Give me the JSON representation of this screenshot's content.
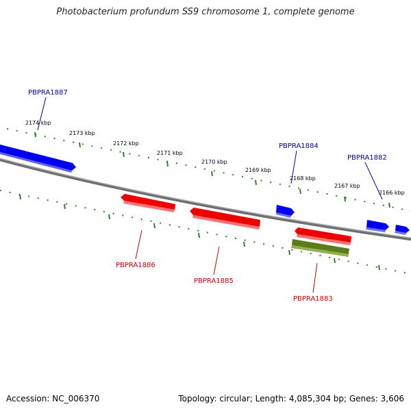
{
  "title": "Photobacterium profundum SS9 chromosome 1, complete genome",
  "footer": {
    "accession": "Accession: NC_006370",
    "summary": "Topology: circular; Length: 4,085,304 bp; Genes: 3,606"
  },
  "colors": {
    "forward_gene": "#0000ee",
    "reverse_gene": "#ee0000",
    "other_feature": "#5a7d1a",
    "backbone": "#808080",
    "ticks": "#2e7d2e",
    "forward_label": "#0000aa",
    "reverse_label": "#cc0000"
  },
  "ticks": [
    {
      "label": "2174 kbp"
    },
    {
      "label": "2173 kbp"
    },
    {
      "label": "2172 kbp"
    },
    {
      "label": "2171 kbp"
    },
    {
      "label": "2170 kbp"
    },
    {
      "label": "2169 kbp"
    },
    {
      "label": "2168 kbp"
    },
    {
      "label": "2167 kbp"
    },
    {
      "label": "2166 kbp"
    }
  ],
  "genes": [
    {
      "name": "PBPRA1887",
      "strand": "forward"
    },
    {
      "name": "PBPRA1886",
      "strand": "reverse"
    },
    {
      "name": "PBPRA1885",
      "strand": "reverse"
    },
    {
      "name": "PBPRA1884",
      "strand": "forward"
    },
    {
      "name": "PBPRA1883",
      "strand": "reverse"
    },
    {
      "name": "PBPRA1882",
      "strand": "forward"
    }
  ]
}
